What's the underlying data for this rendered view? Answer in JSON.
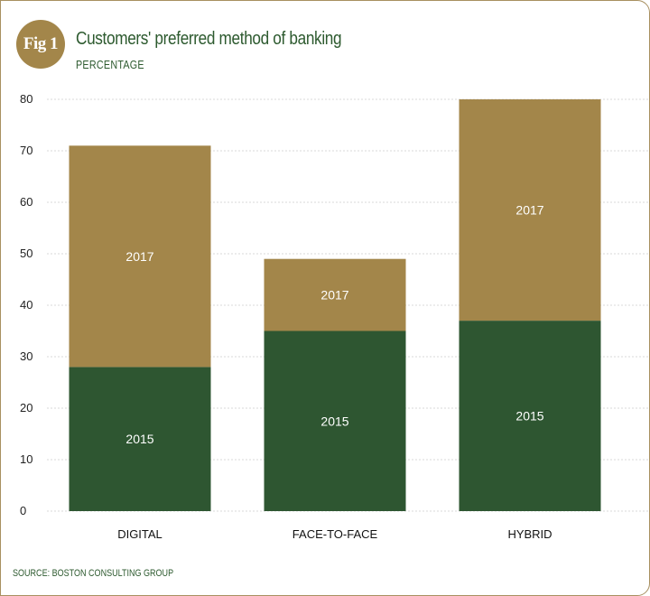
{
  "badge": "Fig 1",
  "source": "SOURCE: BOSTON CONSULTING GROUP",
  "colors": {
    "y2015": "#2e5631",
    "y2017": "#a3864a",
    "grid": "#d8d8d8",
    "frame": "#a89060",
    "text_green": "#2d5a2f"
  },
  "chart_data": {
    "type": "bar",
    "stacked": true,
    "title": "Customers' preferred method of banking",
    "subtitle": "PERCENTAGE",
    "categories": [
      "DIGITAL",
      "FACE-TO-FACE",
      "HYBRID"
    ],
    "series": [
      {
        "name": "2015",
        "values": [
          28,
          35,
          37
        ]
      },
      {
        "name": "2017",
        "values": [
          43,
          14,
          43
        ]
      }
    ],
    "ylim": [
      0,
      80
    ],
    "yticks": [
      0,
      10,
      20,
      30,
      40,
      50,
      60,
      70,
      80
    ],
    "grid": true
  }
}
